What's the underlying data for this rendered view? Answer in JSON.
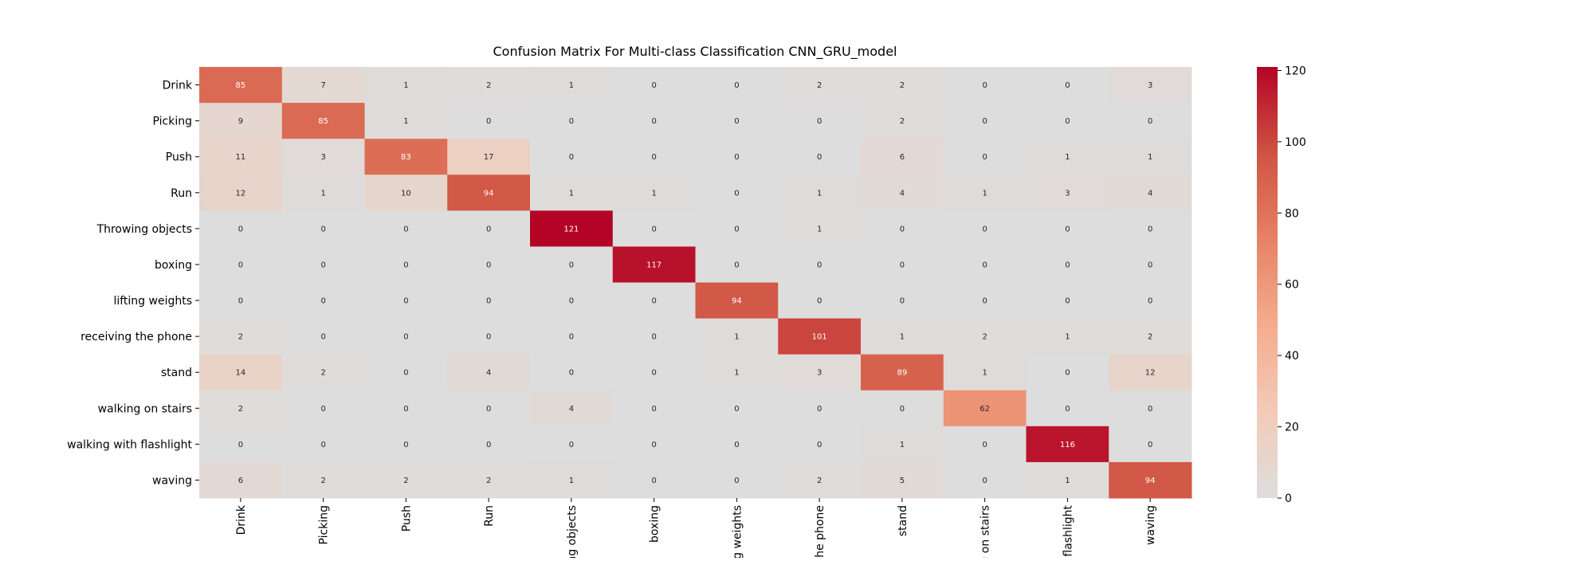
{
  "chart_data": {
    "type": "heatmap",
    "title": "Confusion Matrix For Multi-class Classification CNN_GRU_model",
    "row_labels": [
      "Drink",
      "Picking",
      "Push",
      "Run",
      "Throwing objects",
      "boxing",
      "lifting weights",
      "receiving the phone",
      "stand",
      "walking on stairs",
      "walking with flashlight",
      "waving"
    ],
    "col_labels": [
      "Drink",
      "Picking",
      "Push",
      "Run",
      "ng objects",
      "boxing",
      "g weights",
      "the phone",
      "stand",
      "g on stairs",
      "flashlight",
      "waving"
    ],
    "matrix": [
      [
        85,
        7,
        1,
        2,
        1,
        0,
        0,
        2,
        2,
        0,
        0,
        3
      ],
      [
        9,
        85,
        1,
        0,
        0,
        0,
        0,
        0,
        2,
        0,
        0,
        0
      ],
      [
        11,
        3,
        83,
        17,
        0,
        0,
        0,
        0,
        6,
        0,
        1,
        1
      ],
      [
        12,
        1,
        10,
        94,
        1,
        1,
        0,
        1,
        4,
        1,
        3,
        4
      ],
      [
        0,
        0,
        0,
        0,
        121,
        0,
        0,
        1,
        0,
        0,
        0,
        0
      ],
      [
        0,
        0,
        0,
        0,
        0,
        117,
        0,
        0,
        0,
        0,
        0,
        0
      ],
      [
        0,
        0,
        0,
        0,
        0,
        0,
        94,
        0,
        0,
        0,
        0,
        0
      ],
      [
        2,
        0,
        0,
        0,
        0,
        0,
        1,
        101,
        1,
        2,
        1,
        2
      ],
      [
        14,
        2,
        0,
        4,
        0,
        0,
        1,
        3,
        89,
        1,
        0,
        12
      ],
      [
        2,
        0,
        0,
        0,
        4,
        0,
        0,
        0,
        0,
        62,
        0,
        0
      ],
      [
        0,
        0,
        0,
        0,
        0,
        0,
        0,
        0,
        1,
        0,
        116,
        0
      ],
      [
        6,
        2,
        2,
        2,
        1,
        0,
        0,
        2,
        5,
        0,
        1,
        94
      ]
    ],
    "colormap": "coolwarm",
    "vmin": 0,
    "vmax": 121,
    "colorbar_ticks": [
      0,
      20,
      40,
      60,
      80,
      100,
      120
    ],
    "colors": {
      "low": "#dddddd",
      "high": "#b40426"
    },
    "grid": false,
    "legend": "colorbar-right"
  }
}
